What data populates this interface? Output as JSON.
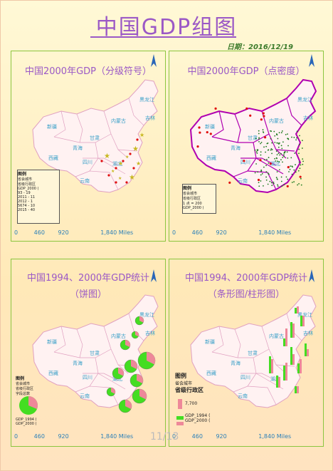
{
  "page": {
    "title": "中国GDP组图",
    "date": "日期：2016/12/19",
    "page_number": "11/13"
  },
  "panels": [
    {
      "title": "中国2000年GDP（分级符号）",
      "legend": {
        "title": "图例",
        "items": [
          "省会城市",
          "省级行政区",
          "GDP_2000 (",
          "93 - 19",
          "2011 - 11",
          "2012 - 1",
          "5674 - 10",
          "2015 - 40"
        ]
      },
      "scale": {
        "ticks": [
          "0",
          "460",
          "920",
          "1,840 Miles"
        ]
      }
    },
    {
      "title": "中国2000年GDP（点密度）",
      "legend": {
        "title": "图例",
        "items": [
          "省会城市",
          "省级行政区",
          "1 点 = 200",
          "GDP_2000 )"
        ]
      },
      "scale": {
        "ticks": [
          "0",
          "460",
          "920",
          "1,840 Miles"
        ]
      }
    },
    {
      "title": "中国1994、2000年GDP统计",
      "subtitle": "（饼图）",
      "legend": {
        "title": "图例",
        "items": [
          "省会城市",
          "省级行政区",
          "字段总数",
          "GDP_1994 (",
          "GDP_2000 ("
        ]
      },
      "scale": {
        "ticks": [
          "0",
          "460",
          "920",
          "1,840 Miles"
        ]
      }
    },
    {
      "title": "中国1994、2000年GDP统计",
      "subtitle": "（条形图/柱形图）",
      "legend": {
        "title": "图例",
        "items": [
          "省会城市",
          "省级行政区",
          "7,700",
          "GDP_1994 (",
          "GDP_2000 ("
        ]
      },
      "scale": {
        "ticks": [
          "0",
          "460",
          "920",
          "1,840 Miles"
        ]
      }
    }
  ],
  "map_labels": {
    "xinjiang": "新疆",
    "xizang": "西藏",
    "qinghai": "青海",
    "neimenggu": "内蒙古",
    "heilongjiang": "黑龙江",
    "sichuan": "四川",
    "yunnan": "云南",
    "gansu": "甘肃",
    "jilin": "吉林",
    "hubei": "湖北"
  },
  "colors": {
    "title": "#9b59c6",
    "panel_border": "#8cc63f",
    "province_border_light": "#e0a0c0",
    "province_border_bold": "#b000b0",
    "fill": "#fff2f2",
    "label": "#3aa0c8",
    "gdp_1994": "#44dd22",
    "gdp_2000": "#ee8899",
    "capital": "#e01010"
  }
}
